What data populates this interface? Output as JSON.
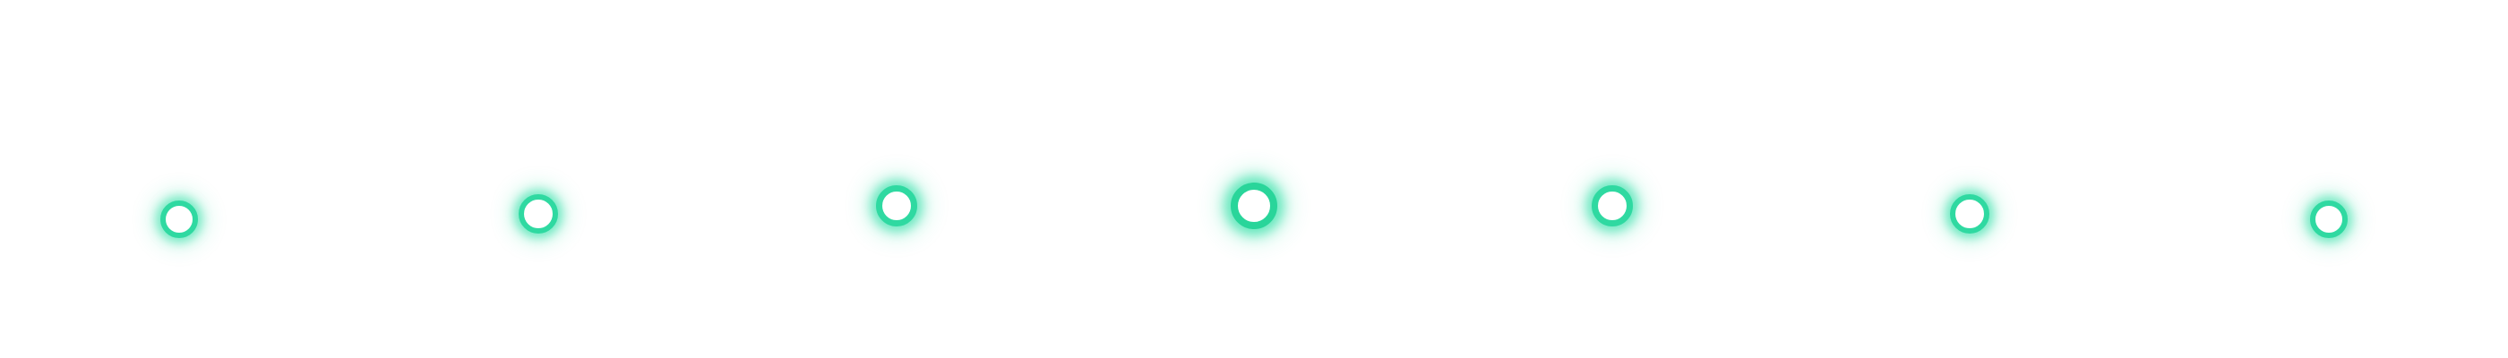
{
  "theme": {
    "background": "#ffffff",
    "dot_fill": "#ffffff",
    "dot_ring": "#2fd9a1",
    "dot_glow": "#34e0a8"
  },
  "indicators": [
    {
      "id": "dot-1"
    },
    {
      "id": "dot-2"
    },
    {
      "id": "dot-3"
    },
    {
      "id": "dot-4",
      "emphasized": true
    },
    {
      "id": "dot-5"
    },
    {
      "id": "dot-6"
    },
    {
      "id": "dot-7"
    }
  ]
}
